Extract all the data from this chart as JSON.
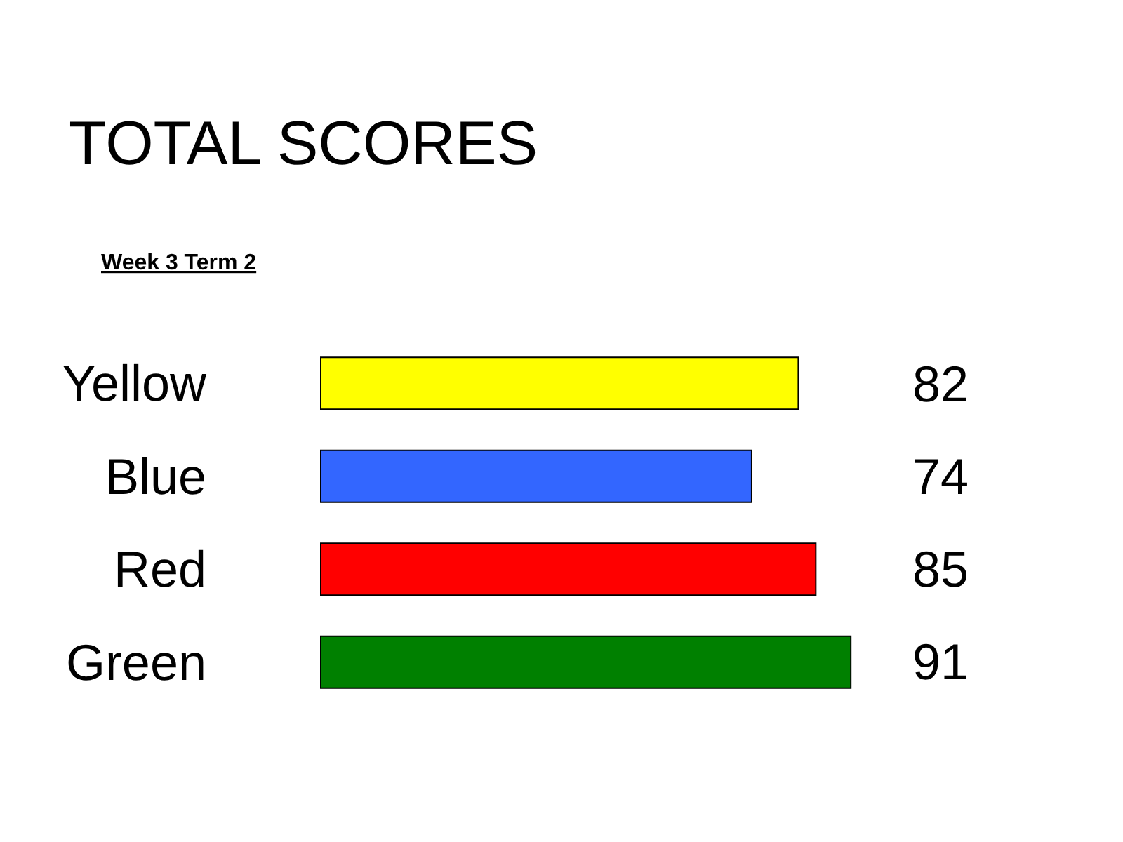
{
  "chart_data": {
    "type": "bar",
    "orientation": "horizontal",
    "title": "TOTAL SCORES",
    "subtitle": "Week 3 Term 2",
    "categories": [
      "Yellow",
      "Blue",
      "Red",
      "Green"
    ],
    "values": [
      82,
      74,
      85,
      91
    ],
    "colors": [
      "#ffff00",
      "#3366ff",
      "#ff0000",
      "#008000"
    ],
    "data_labels": true
  }
}
